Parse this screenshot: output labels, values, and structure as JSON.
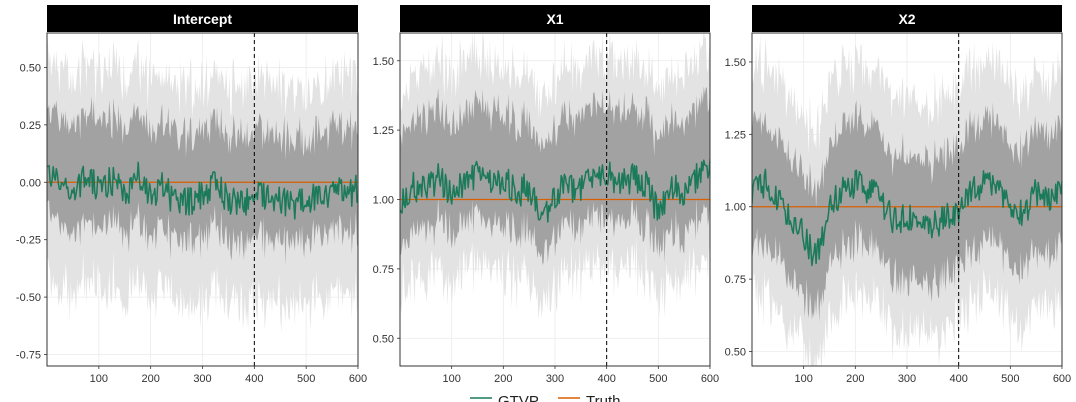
{
  "chart_data": {
    "type": "line",
    "legend": {
      "position": "bottom",
      "items": [
        {
          "label": "GTVP",
          "color": "#1b7a5a"
        },
        {
          "label": "Truth",
          "color": "#d95f02"
        }
      ]
    },
    "colors": {
      "estimate": "#1b7a5a",
      "truth": "#d95f02",
      "band_outer": "#e3e3e3",
      "band_inner": "#9a9a9a",
      "strip": "#000000"
    },
    "grid": true,
    "panels": [
      {
        "title": "Intercept",
        "xlim": [
          0,
          600
        ],
        "ylim": [
          -0.8,
          0.65
        ],
        "xticks": [
          100,
          200,
          300,
          400,
          500,
          600
        ],
        "yticks": [
          0.5,
          0.25,
          0.0,
          -0.25,
          -0.5,
          -0.75
        ],
        "ytick_labels": [
          "0.50",
          "0.25",
          "0.00",
          "-0.25",
          "-0.50",
          "-0.75"
        ],
        "truth": 0.0,
        "vline": 400,
        "estimate_x": [
          0,
          25,
          50,
          75,
          100,
          125,
          150,
          175,
          200,
          225,
          250,
          275,
          300,
          325,
          350,
          375,
          400,
          425,
          450,
          475,
          500,
          525,
          550,
          575,
          600
        ],
        "estimate_y": [
          0.05,
          0.0,
          -0.05,
          0.02,
          -0.03,
          0.01,
          -0.06,
          0.03,
          -0.05,
          -0.02,
          -0.1,
          -0.08,
          -0.05,
          0.0,
          -0.08,
          -0.1,
          -0.06,
          -0.05,
          -0.08,
          -0.1,
          -0.06,
          -0.08,
          -0.04,
          -0.05,
          -0.03
        ],
        "inner_band": [
          0.28,
          -0.18
        ],
        "outer_band": [
          0.5,
          -0.45
        ]
      },
      {
        "title": "X1",
        "xlim": [
          0,
          600
        ],
        "ylim": [
          0.4,
          1.6
        ],
        "xticks": [
          100,
          200,
          300,
          400,
          500,
          600
        ],
        "yticks": [
          1.5,
          1.25,
          1.0,
          0.75,
          0.5
        ],
        "ytick_labels": [
          "1.50",
          "1.25",
          "1.00",
          "0.75",
          "0.50"
        ],
        "truth": 1.0,
        "vline": 400,
        "estimate_x": [
          0,
          25,
          50,
          75,
          100,
          125,
          150,
          175,
          200,
          225,
          250,
          275,
          300,
          325,
          350,
          375,
          400,
          425,
          450,
          475,
          500,
          525,
          550,
          575,
          600
        ],
        "estimate_y": [
          0.98,
          1.05,
          1.03,
          1.08,
          1.02,
          1.06,
          1.1,
          1.05,
          1.08,
          1.02,
          1.05,
          0.9,
          1.02,
          1.05,
          1.03,
          1.08,
          1.1,
          1.05,
          1.08,
          1.06,
          0.95,
          1.05,
          1.02,
          1.08,
          1.1
        ],
        "inner_band": [
          0.25,
          -0.15
        ],
        "outer_band": [
          0.42,
          -0.32
        ]
      },
      {
        "title": "X2",
        "xlim": [
          0,
          600
        ],
        "ylim": [
          0.45,
          1.6
        ],
        "xticks": [
          100,
          200,
          300,
          400,
          500,
          600
        ],
        "yticks": [
          1.5,
          1.25,
          1.0,
          0.75,
          0.5
        ],
        "ytick_labels": [
          "1.50",
          "1.25",
          "1.00",
          "0.75",
          "0.50"
        ],
        "truth": 1.0,
        "vline": 400,
        "estimate_x": [
          0,
          25,
          50,
          75,
          100,
          125,
          150,
          175,
          200,
          225,
          250,
          275,
          300,
          325,
          350,
          375,
          400,
          425,
          450,
          475,
          500,
          525,
          550,
          575,
          600
        ],
        "estimate_y": [
          1.05,
          1.08,
          1.02,
          0.95,
          0.9,
          0.82,
          1.0,
          1.05,
          1.08,
          1.06,
          1.02,
          0.95,
          0.96,
          0.98,
          0.93,
          0.96,
          1.0,
          1.05,
          1.08,
          1.06,
          1.02,
          0.98,
          1.05,
          1.02,
          1.06
        ],
        "inner_band": [
          0.22,
          -0.2
        ],
        "outer_band": [
          0.42,
          -0.38
        ]
      }
    ]
  }
}
